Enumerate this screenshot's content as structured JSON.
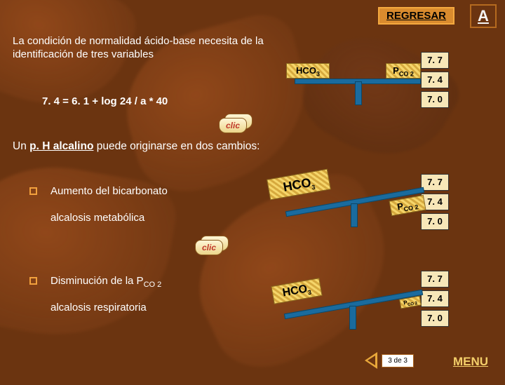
{
  "header": {
    "regresar_label": "REGRESAR",
    "a_label": "A"
  },
  "intro_text": "La condición de normalidad ácido-base necesita de la identificación de tres variables",
  "equation": "7. 4 = 6. 1 + log   24 /  a * 40",
  "sentence2_prefix": "Un ",
  "sentence2_bold": "p. H alcalino",
  "sentence2_suffix": " puede originarse en dos cambios:",
  "items": [
    {
      "label": "Aumento del bicarbonato",
      "sublabel": "alcalosis metabólica"
    },
    {
      "label_prefix": "Disminución de la P",
      "label_sub": "CO 2",
      "sublabel": "alcalosis respiratoria"
    }
  ],
  "scale_values": [
    "7. 7",
    "7. 4",
    "7. 0"
  ],
  "balance": {
    "left_label": "HCO",
    "left_sub": "3",
    "right_label": "P",
    "right_sub": "CO 2"
  },
  "clic_label": "clic",
  "pager": {
    "text": "3 de 3"
  },
  "menu_label": "MENU",
  "colors": {
    "bg": "#6b3410",
    "accent": "#d98b2e",
    "scale_cell": "#f7e7b8",
    "bar": "#1a6b9e",
    "plate": "#f5d56a",
    "menu": "#f4cf6a"
  }
}
